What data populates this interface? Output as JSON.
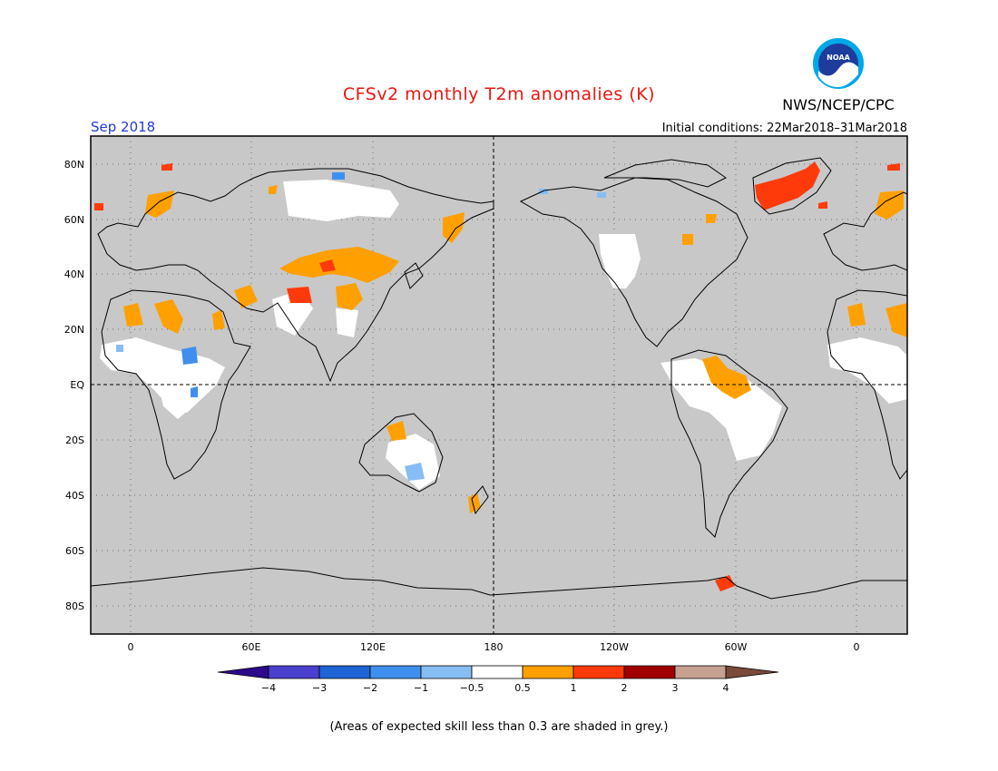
{
  "header": {
    "title": "CFSv2 monthly T2m anomalies (K)",
    "organization": "NWS/NCEP/CPC",
    "logo_text": "NOAA",
    "month_label": "Sep 2018",
    "initial_conditions": "Initial conditions: 22Mar2018–31Mar2018"
  },
  "axes": {
    "lat_labels": [
      "80N",
      "60N",
      "40N",
      "20N",
      "EQ",
      "20S",
      "40S",
      "60S",
      "80S"
    ],
    "lon_labels": [
      "0",
      "60E",
      "120E",
      "180",
      "120W",
      "60W",
      "0"
    ]
  },
  "colorbar": {
    "labels": [
      "−4",
      "−3",
      "−2",
      "−1",
      "−0.5",
      "0.5",
      "1",
      "2",
      "3",
      "4"
    ],
    "colors": [
      "#2c0a8c",
      "#4a3fcf",
      "#1f64d6",
      "#3f90ee",
      "#86bdf3",
      "#ffffff",
      "#ffa000",
      "#ff3a0a",
      "#a00000",
      "#c8a092",
      "#7a4a3a"
    ]
  },
  "footnote": "(Areas of expected skill less than 0.3 are shaded in grey.)",
  "colors": {
    "background_grey": "#c8c8c8",
    "title_red": "#e8170f",
    "month_blue": "#1f3bd6"
  }
}
